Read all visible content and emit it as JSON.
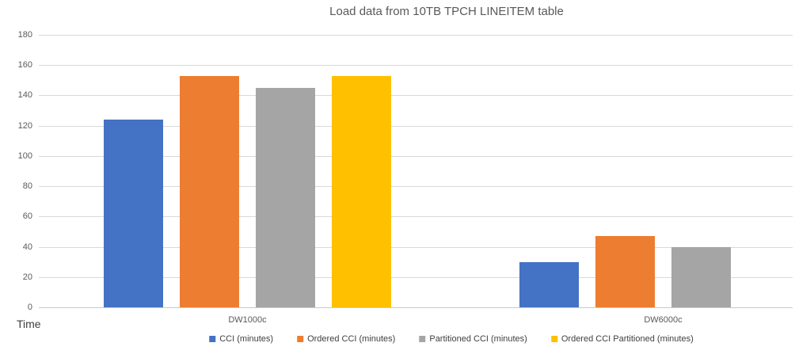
{
  "chart_data": {
    "type": "bar",
    "title": "Load data from 10TB TPCH LINEITEM table",
    "categories": [
      "DW1000c",
      "DW6000c"
    ],
    "series": [
      {
        "name": "CCI (minutes)",
        "color": "#4472C4",
        "values": [
          124,
          30
        ]
      },
      {
        "name": "Ordered CCI (minutes)",
        "color": "#ED7D31",
        "values": [
          153,
          47
        ]
      },
      {
        "name": "Partitioned CCI (minutes)",
        "color": "#A5A5A5",
        "values": [
          145,
          40
        ]
      },
      {
        "name": "Ordered CCI Partitioned (minutes)",
        "color": "#FFC000",
        "values": [
          153,
          null
        ]
      }
    ],
    "xlabel": "",
    "ylabel": "Time",
    "ylim": [
      0,
      180
    ],
    "y_ticks": [
      0,
      20,
      40,
      60,
      80,
      100,
      120,
      140,
      160,
      180
    ],
    "grid": true,
    "legend_position": "bottom"
  }
}
